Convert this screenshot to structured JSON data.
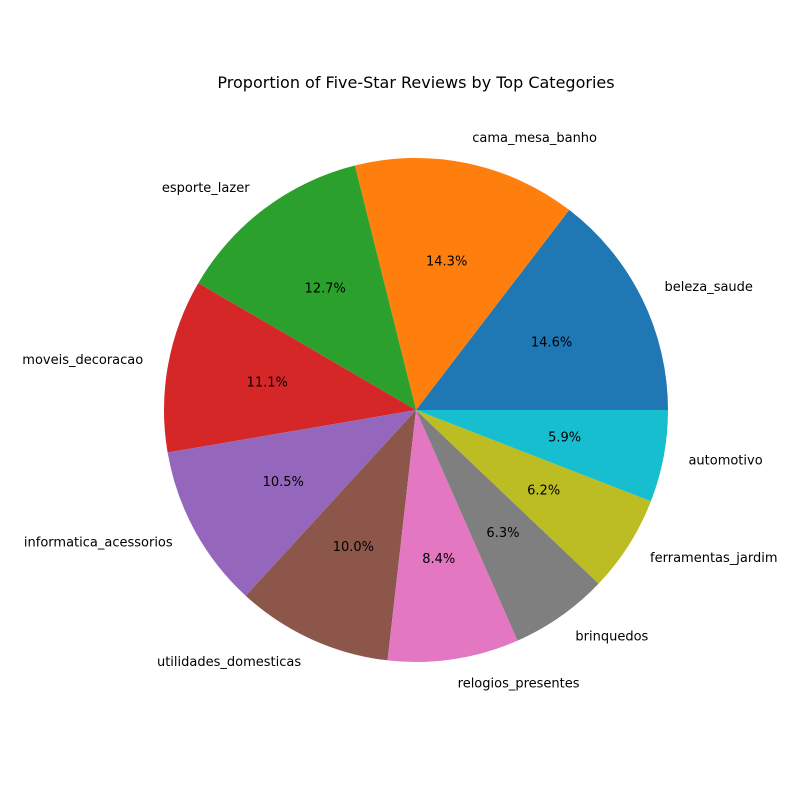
{
  "chart_data": {
    "type": "pie",
    "title": "Proportion of Five-Star Reviews by Top Categories",
    "start_angle_deg": 0,
    "direction": "counterclockwise",
    "slices": [
      {
        "label": "beleza_saude",
        "value": 14.6,
        "pct_label": "14.6%",
        "color": "#1f77b4"
      },
      {
        "label": "cama_mesa_banho",
        "value": 14.3,
        "pct_label": "14.3%",
        "color": "#ff7f0e"
      },
      {
        "label": "esporte_lazer",
        "value": 12.7,
        "pct_label": "12.7%",
        "color": "#2ca02c"
      },
      {
        "label": "moveis_decoracao",
        "value": 11.1,
        "pct_label": "11.1%",
        "color": "#d62728"
      },
      {
        "label": "informatica_acessorios",
        "value": 10.5,
        "pct_label": "10.5%",
        "color": "#9467bd"
      },
      {
        "label": "utilidades_domesticas",
        "value": 10.0,
        "pct_label": "10.0%",
        "color": "#8c564b"
      },
      {
        "label": "relogios_presentes",
        "value": 8.4,
        "pct_label": "8.4%",
        "color": "#e377c2"
      },
      {
        "label": "brinquedos",
        "value": 6.3,
        "pct_label": "6.3%",
        "color": "#7f7f7f"
      },
      {
        "label": "ferramentas_jardim",
        "value": 6.2,
        "pct_label": "6.2%",
        "color": "#bcbd22"
      },
      {
        "label": "automotivo",
        "value": 5.9,
        "pct_label": "5.9%",
        "color": "#17becf"
      }
    ]
  }
}
